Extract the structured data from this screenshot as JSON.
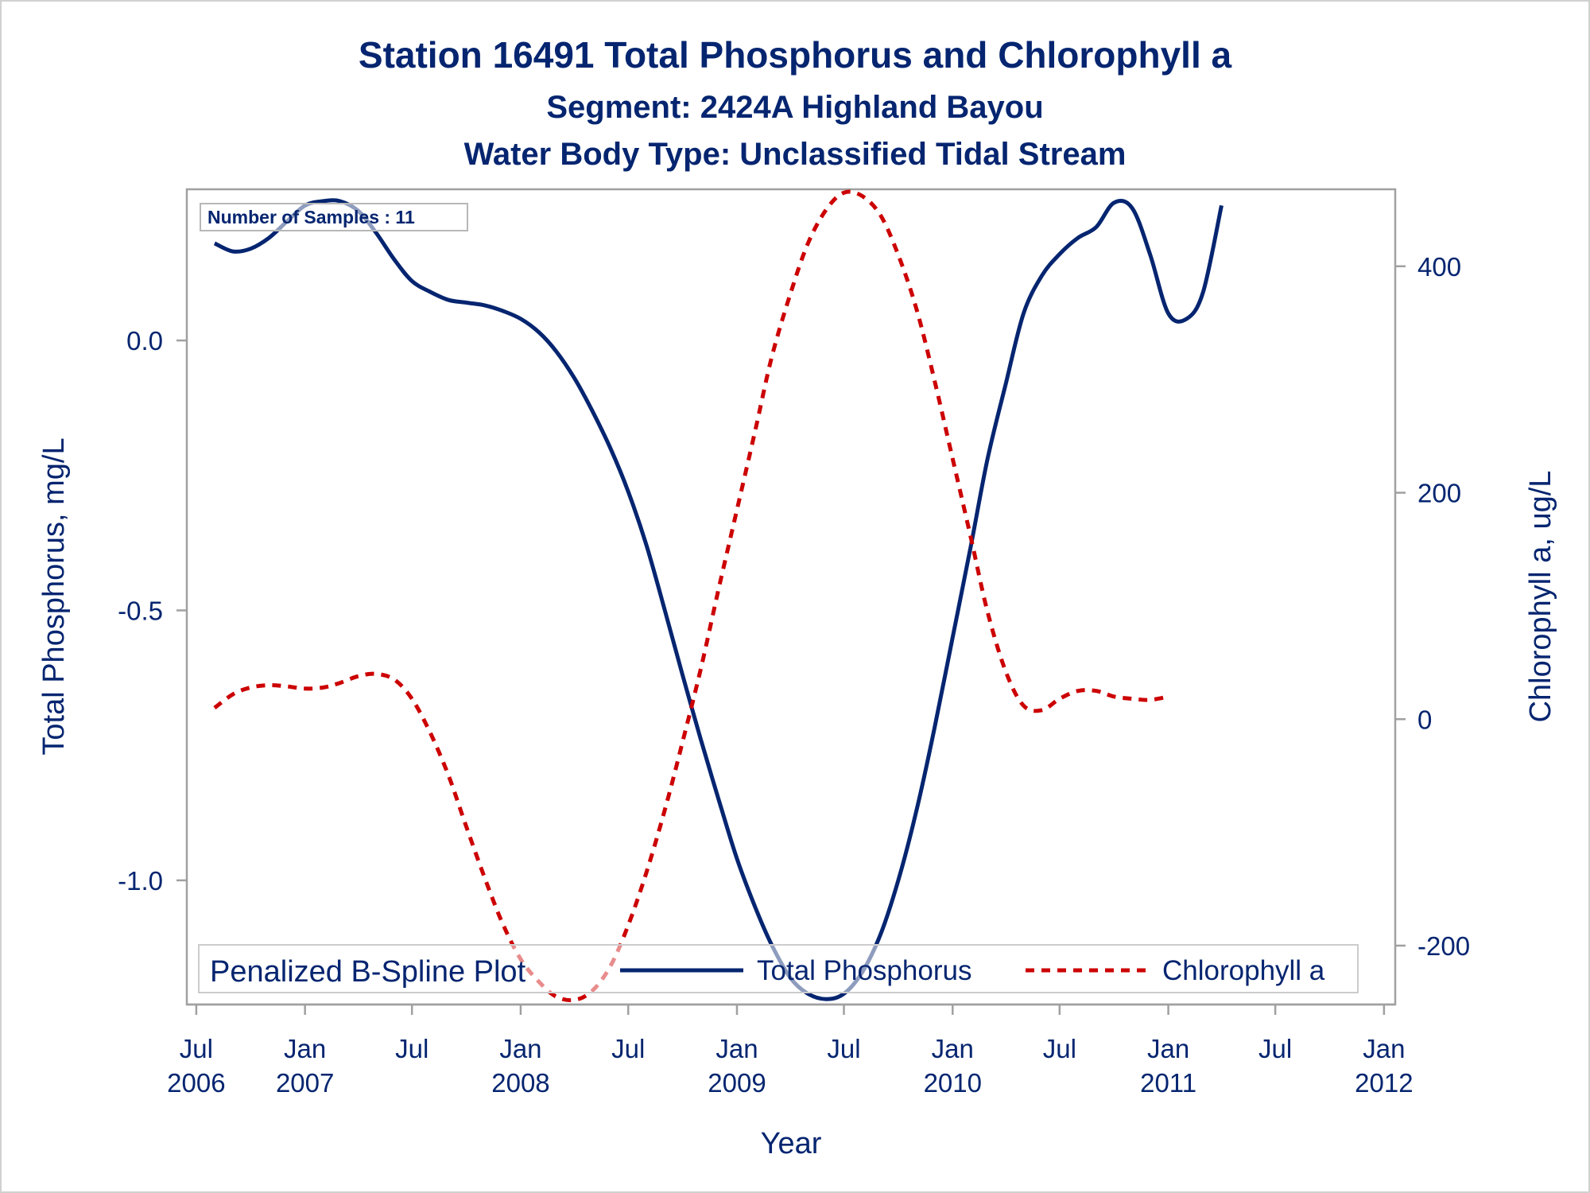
{
  "chart_data": {
    "type": "line",
    "title": "Station 16491  Total Phosphorus and Chlorophyll a",
    "subtitle": "Segment: 2424A  Highland Bayou",
    "subtitle2": "Water Body Type: Unclassified Tidal Stream",
    "xlabel": "Year",
    "ylabel": "Total Phosphorus, mg/L",
    "y2label": "Chlorophyll a, ug/L",
    "inset_text": "Number of Samples : 11",
    "legend_title": "Penalized B-Spline Plot",
    "legend_position": "bottom-inside",
    "grid": false,
    "x_ticks": [
      {
        "value": "2006-07",
        "month": "Jul",
        "year": "2006"
      },
      {
        "value": "2007-01",
        "month": "Jan",
        "year": "2007"
      },
      {
        "value": "2007-07",
        "month": "Jul",
        "year": ""
      },
      {
        "value": "2008-01",
        "month": "Jan",
        "year": "2008"
      },
      {
        "value": "2008-07",
        "month": "Jul",
        "year": ""
      },
      {
        "value": "2009-01",
        "month": "Jan",
        "year": "2009"
      },
      {
        "value": "2009-07",
        "month": "Jul",
        "year": ""
      },
      {
        "value": "2010-01",
        "month": "Jan",
        "year": "2010"
      },
      {
        "value": "2010-07",
        "month": "Jul",
        "year": ""
      },
      {
        "value": "2011-01",
        "month": "Jan",
        "year": "2011"
      },
      {
        "value": "2011-07",
        "month": "Jul",
        "year": ""
      },
      {
        "value": "2012-01",
        "month": "Jan",
        "year": "2012"
      }
    ],
    "xlim": [
      "2006-06-15",
      "2012-01-20"
    ],
    "ylim": [
      -1.23,
      0.28
    ],
    "y_ticks": [
      0.0,
      -0.5,
      -1.0
    ],
    "y_tick_labels": [
      "0.0",
      "-0.5",
      "-1.0"
    ],
    "y2lim": [
      -252,
      468
    ],
    "y2_ticks": [
      400,
      200,
      0,
      -200
    ],
    "y2_tick_labels": [
      "400",
      "200",
      "0",
      "-200"
    ],
    "series": [
      {
        "name": "Total Phosphorus",
        "axis": "left",
        "color": "#052570",
        "dash": "solid",
        "points": [
          [
            "2006-08-01",
            0.18
          ],
          [
            "2006-09-01",
            0.165
          ],
          [
            "2006-10-01",
            0.17
          ],
          [
            "2006-11-01",
            0.19
          ],
          [
            "2006-12-01",
            0.22
          ],
          [
            "2007-01-01",
            0.25
          ],
          [
            "2007-02-01",
            0.258
          ],
          [
            "2007-03-01",
            0.258
          ],
          [
            "2007-04-01",
            0.24
          ],
          [
            "2007-05-01",
            0.2
          ],
          [
            "2007-06-01",
            0.15
          ],
          [
            "2007-07-01",
            0.11
          ],
          [
            "2007-08-01",
            0.09
          ],
          [
            "2007-09-01",
            0.075
          ],
          [
            "2007-10-01",
            0.07
          ],
          [
            "2007-11-01",
            0.065
          ],
          [
            "2007-12-01",
            0.055
          ],
          [
            "2008-01-01",
            0.04
          ],
          [
            "2008-02-01",
            0.015
          ],
          [
            "2008-03-01",
            -0.02
          ],
          [
            "2008-04-01",
            -0.07
          ],
          [
            "2008-05-01",
            -0.13
          ],
          [
            "2008-06-01",
            -0.2
          ],
          [
            "2008-07-01",
            -0.28
          ],
          [
            "2008-08-01",
            -0.38
          ],
          [
            "2008-09-01",
            -0.5
          ],
          [
            "2008-10-01",
            -0.62
          ],
          [
            "2008-11-01",
            -0.74
          ],
          [
            "2008-12-01",
            -0.85
          ],
          [
            "2009-01-01",
            -0.96
          ],
          [
            "2009-02-01",
            -1.05
          ],
          [
            "2009-03-01",
            -1.12
          ],
          [
            "2009-04-01",
            -1.18
          ],
          [
            "2009-05-01",
            -1.21
          ],
          [
            "2009-06-01",
            -1.22
          ],
          [
            "2009-07-01",
            -1.21
          ],
          [
            "2009-08-01",
            -1.17
          ],
          [
            "2009-09-01",
            -1.1
          ],
          [
            "2009-10-01",
            -1.0
          ],
          [
            "2009-11-01",
            -0.87
          ],
          [
            "2009-12-01",
            -0.72
          ],
          [
            "2010-01-01",
            -0.55
          ],
          [
            "2010-02-01",
            -0.38
          ],
          [
            "2010-03-01",
            -0.22
          ],
          [
            "2010-04-01",
            -0.08
          ],
          [
            "2010-05-01",
            0.05
          ],
          [
            "2010-06-01",
            0.12
          ],
          [
            "2010-07-01",
            0.16
          ],
          [
            "2010-08-01",
            0.19
          ],
          [
            "2010-09-01",
            0.21
          ],
          [
            "2010-10-01",
            0.255
          ],
          [
            "2010-11-01",
            0.245
          ],
          [
            "2010-12-01",
            0.16
          ],
          [
            "2011-01-01",
            0.05
          ],
          [
            "2011-02-01",
            0.04
          ],
          [
            "2011-03-01",
            0.09
          ],
          [
            "2011-04-01",
            0.25
          ]
        ]
      },
      {
        "name": "Chlorophyll a",
        "axis": "right",
        "color": "#cc0000",
        "dash": "dotted",
        "points": [
          [
            "2006-08-01",
            10
          ],
          [
            "2006-09-01",
            22
          ],
          [
            "2006-10-01",
            28
          ],
          [
            "2006-11-01",
            30
          ],
          [
            "2006-12-01",
            29
          ],
          [
            "2007-01-01",
            27
          ],
          [
            "2007-02-01",
            28
          ],
          [
            "2007-03-01",
            32
          ],
          [
            "2007-04-01",
            38
          ],
          [
            "2007-05-01",
            40
          ],
          [
            "2007-06-01",
            35
          ],
          [
            "2007-07-01",
            18
          ],
          [
            "2007-08-01",
            -12
          ],
          [
            "2007-09-01",
            -50
          ],
          [
            "2007-10-01",
            -95
          ],
          [
            "2007-11-01",
            -140
          ],
          [
            "2007-12-01",
            -180
          ],
          [
            "2008-01-01",
            -212
          ],
          [
            "2008-02-01",
            -232
          ],
          [
            "2008-03-01",
            -245
          ],
          [
            "2008-04-01",
            -248
          ],
          [
            "2008-05-01",
            -240
          ],
          [
            "2008-06-01",
            -218
          ],
          [
            "2008-07-01",
            -182
          ],
          [
            "2008-08-01",
            -135
          ],
          [
            "2008-09-01",
            -80
          ],
          [
            "2008-10-01",
            -20
          ],
          [
            "2008-11-01",
            45
          ],
          [
            "2008-12-01",
            115
          ],
          [
            "2009-01-01",
            185
          ],
          [
            "2009-02-01",
            255
          ],
          [
            "2009-03-01",
            320
          ],
          [
            "2009-04-01",
            375
          ],
          [
            "2009-05-01",
            420
          ],
          [
            "2009-06-01",
            450
          ],
          [
            "2009-07-01",
            465
          ],
          [
            "2009-08-01",
            462
          ],
          [
            "2009-09-01",
            445
          ],
          [
            "2009-10-01",
            410
          ],
          [
            "2009-11-01",
            362
          ],
          [
            "2009-12-01",
            300
          ],
          [
            "2010-01-01",
            230
          ],
          [
            "2010-02-01",
            160
          ],
          [
            "2010-03-01",
            95
          ],
          [
            "2010-04-01",
            42
          ],
          [
            "2010-05-01",
            12
          ],
          [
            "2010-06-01",
            8
          ],
          [
            "2010-07-01",
            18
          ],
          [
            "2010-08-01",
            25
          ],
          [
            "2010-09-01",
            25
          ],
          [
            "2010-10-01",
            20
          ],
          [
            "2010-11-01",
            18
          ],
          [
            "2010-12-01",
            17
          ],
          [
            "2011-01-01",
            20
          ]
        ]
      }
    ]
  }
}
